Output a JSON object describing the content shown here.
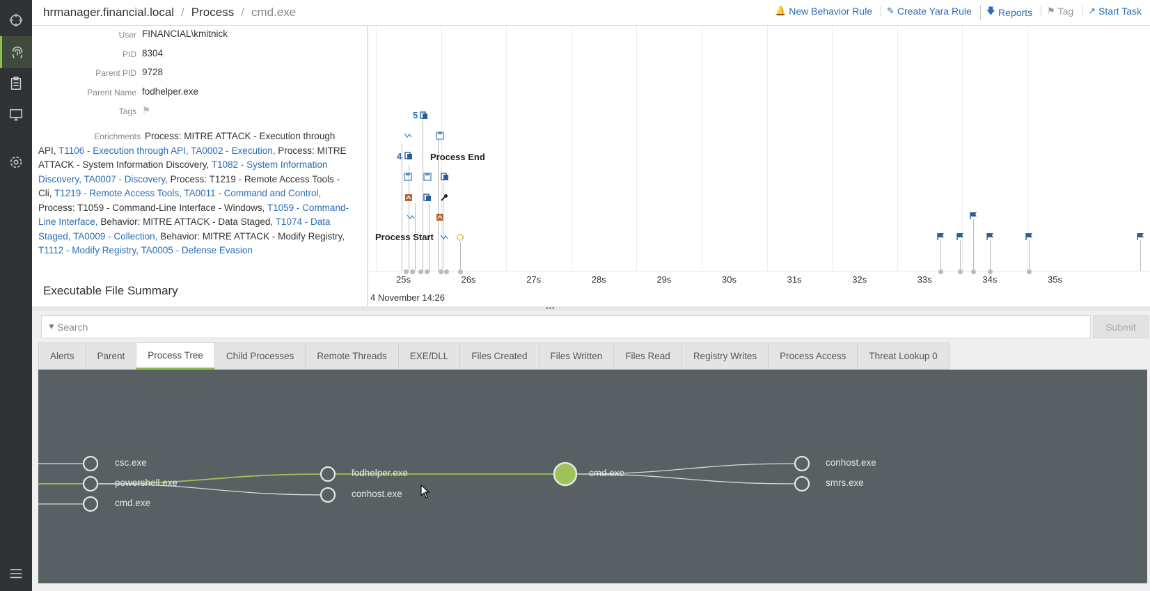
{
  "breadcrumb": {
    "host": "hrmanager.financial.local",
    "section": "Process",
    "current": "cmd.exe"
  },
  "actions": [
    {
      "label": "New Behavior Rule",
      "icon": "bell-icon"
    },
    {
      "label": "Create Yara Rule",
      "icon": "pencil-icon"
    },
    {
      "label": "Reports",
      "icon": "download-icon"
    },
    {
      "label": "Tag",
      "icon": "tag-icon"
    },
    {
      "label": "Start Task",
      "icon": "external-link-icon"
    }
  ],
  "details": {
    "user_label": "User",
    "user": "FINANCIAL\\kmitnick",
    "pid_label": "PID",
    "pid": "8304",
    "ppid_label": "Parent PID",
    "ppid": "9728",
    "pname_label": "Parent Name",
    "pname": "fodhelper.exe",
    "tags_label": "Tags",
    "enrich_label": "Enrichments",
    "enrichments": [
      {
        "text": "Process: MITRE ATTACK - Execution through API,",
        "link": false
      },
      {
        "text": "T1106 - Execution through API,",
        "link": true
      },
      {
        "text": "TA0002 - Execution,",
        "link": true
      },
      {
        "text": "Process: MITRE ATTACK - System Information Discovery,",
        "link": false
      },
      {
        "text": "T1082 - System Information Discovery,",
        "link": true
      },
      {
        "text": "TA0007 - Discovery,",
        "link": true
      },
      {
        "text": "Process: T1219 - Remote Access Tools - Cli,",
        "link": false
      },
      {
        "text": "T1219 - Remote Access Tools,",
        "link": true
      },
      {
        "text": "TA0011 - Command and Control,",
        "link": true
      },
      {
        "text": "Process: T1059 - Command-Line Interface - Windows,",
        "link": false
      },
      {
        "text": "T1059 - Command-Line Interface,",
        "link": true
      },
      {
        "text": "Behavior: MITRE ATTACK - Data Staged,",
        "link": false
      },
      {
        "text": "T1074 - Data Staged,",
        "link": true
      },
      {
        "text": "TA0009 - Collection,",
        "link": true
      },
      {
        "text": "Behavior: MITRE ATTACK - Modify Registry,",
        "link": false
      },
      {
        "text": "T1112 - Modify Registry,",
        "link": true
      },
      {
        "text": "TA0005 - Defense Evasion",
        "link": true
      }
    ],
    "section_title": "Executable File Summary"
  },
  "timeline": {
    "ticks": [
      "25s",
      "26s",
      "27s",
      "28s",
      "29s",
      "30s",
      "31s",
      "32s",
      "33s",
      "34s",
      "35s"
    ],
    "date": "4 November 14:26",
    "process_start": "Process Start",
    "process_end": "Process End",
    "count_a": "5",
    "count_b": "4"
  },
  "search": {
    "placeholder": "Search",
    "submit": "Submit"
  },
  "tabs": [
    "Alerts",
    "Parent",
    "Process Tree",
    "Child Processes",
    "Remote Threads",
    "EXE/DLL",
    "Files Created",
    "Files Written",
    "Files Read",
    "Registry Writes",
    "Process Access",
    "Threat Lookup 0"
  ],
  "active_tab": "Process Tree",
  "tree": {
    "nodes": [
      "csc.exe",
      "powershell.exe",
      "cmd.exe",
      "fodhelper.exe",
      "conhost.exe",
      "cmd.exe",
      "conhost.exe",
      "smrs.exe"
    ]
  },
  "colors": {
    "accent": "#8fbf4a",
    "link": "#2a6db5",
    "rail": "#2f3336",
    "tree_bg": "#596064"
  }
}
